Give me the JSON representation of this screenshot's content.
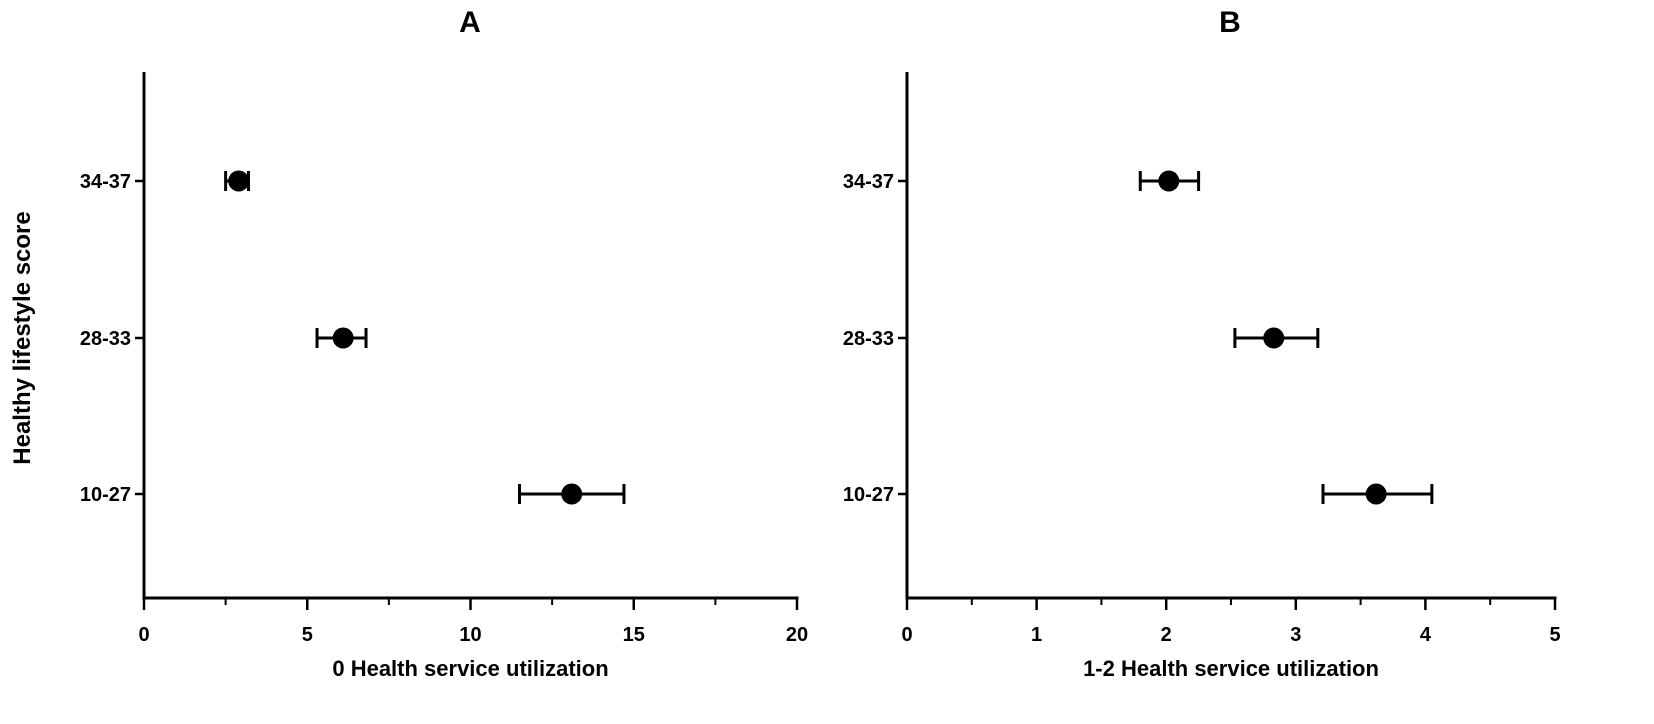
{
  "figure": {
    "ylabel": "Healthy lifestyle score"
  },
  "chart_data": [
    {
      "type": "scatter",
      "panel": "A",
      "title": "A",
      "xlabel": "0 Health service utilization",
      "ylabel": "Healthy lifestyle score",
      "xlim": [
        0,
        20
      ],
      "major_ticks": [
        0,
        5,
        10,
        15,
        20
      ],
      "minor_tick_step": 2.5,
      "categories": [
        "34-37",
        "28-33",
        "10-27"
      ],
      "points": [
        {
          "category": "34-37",
          "x": 2.9,
          "low": 2.5,
          "high": 3.2
        },
        {
          "category": "28-33",
          "x": 6.1,
          "low": 5.3,
          "high": 6.8
        },
        {
          "category": "10-27",
          "x": 13.1,
          "low": 11.5,
          "high": 14.7
        }
      ],
      "error_bars": true,
      "grid": false,
      "marker_color": "#000000"
    },
    {
      "type": "scatter",
      "panel": "B",
      "title": "B",
      "xlabel": "1-2 Health service utilization",
      "ylabel": "",
      "xlim": [
        0,
        5
      ],
      "major_ticks": [
        0,
        1,
        2,
        3,
        4,
        5
      ],
      "minor_tick_step": 0.5,
      "categories": [
        "34-37",
        "28-33",
        "10-27"
      ],
      "points": [
        {
          "category": "34-37",
          "x": 2.02,
          "low": 1.8,
          "high": 2.25
        },
        {
          "category": "28-33",
          "x": 2.83,
          "low": 2.53,
          "high": 3.17
        },
        {
          "category": "10-27",
          "x": 3.62,
          "low": 3.21,
          "high": 4.05
        }
      ],
      "error_bars": true,
      "grid": false,
      "marker_color": "#000000"
    }
  ]
}
